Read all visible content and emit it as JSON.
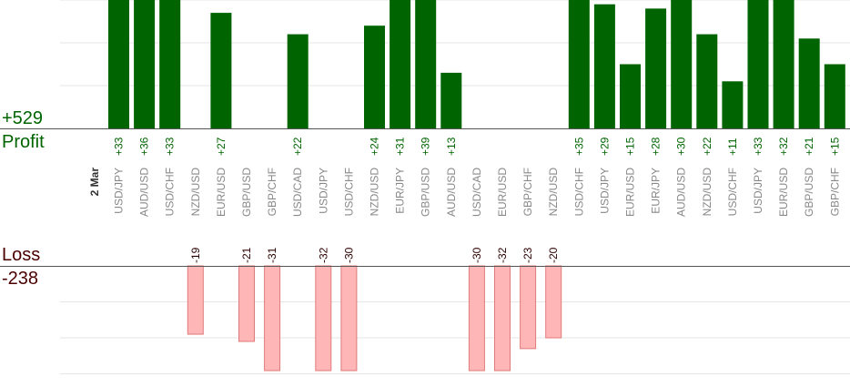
{
  "summary": {
    "profit_total": "+529",
    "profit_label": "Profit",
    "loss_label": "Loss",
    "loss_total": "-238"
  },
  "colors": {
    "profit_bar": "#006400",
    "profit_text": "#006400",
    "loss_bar": "#ffb6b6",
    "loss_bar_edge": "#e07a7a",
    "loss_text": "#2b0000",
    "axis": "#555555",
    "grid": "#e6e6e6",
    "pair_label": "#888888",
    "date_label": "#333333"
  },
  "chart_data": {
    "type": "bar",
    "date_label": "2 Mar",
    "categories": [
      "USD/JPY",
      "AUD/USD",
      "USD/CHF",
      "NZD/USD",
      "EUR/USD",
      "GBP/USD",
      "GBP/CHF",
      "USD/CAD",
      "USD/JPY",
      "USD/CHF",
      "NZD/USD",
      "EUR/JPY",
      "GBP/USD",
      "AUD/USD",
      "USD/CAD",
      "EUR/USD",
      "GBP/CHF",
      "NZD/USD",
      "USD/CHF",
      "USD/JPY",
      "EUR/USD",
      "EUR/JPY",
      "AUD/USD",
      "NZD/USD",
      "USD/CHF",
      "USD/JPY",
      "EUR/USD",
      "GBP/USD",
      "GBP/CHF"
    ],
    "series": [
      {
        "name": "Profit",
        "values": [
          33,
          36,
          33,
          null,
          27,
          null,
          null,
          22,
          null,
          null,
          24,
          31,
          39,
          13,
          null,
          null,
          null,
          null,
          35,
          29,
          15,
          28,
          30,
          22,
          11,
          33,
          32,
          21,
          15
        ],
        "labels": [
          "+33",
          "+36",
          "+33",
          null,
          "+27",
          null,
          null,
          "+22",
          null,
          null,
          "+24",
          "+31",
          "+39",
          "+13",
          null,
          null,
          null,
          null,
          "+35",
          "+29",
          "+15",
          "+28",
          "+30",
          "+22",
          "+11",
          "+33",
          "+32",
          "+21",
          "+15"
        ]
      },
      {
        "name": "Loss",
        "values": [
          null,
          null,
          null,
          -19,
          null,
          -21,
          -31,
          null,
          -32,
          -30,
          null,
          null,
          null,
          null,
          -30,
          -32,
          -23,
          -20,
          null,
          null,
          null,
          null,
          null,
          null,
          null,
          null,
          null,
          null,
          null
        ],
        "labels": [
          null,
          null,
          null,
          "-19",
          null,
          "-21",
          "-31",
          null,
          "-32",
          "-30",
          null,
          null,
          null,
          null,
          "-30",
          "-32",
          "-23",
          "-20",
          null,
          null,
          null,
          null,
          null,
          null,
          null,
          null,
          null,
          null,
          null
        ]
      }
    ],
    "profit_ylim": [
      0,
      30
    ],
    "loss_ylim": [
      -30,
      0
    ],
    "grid": true
  }
}
